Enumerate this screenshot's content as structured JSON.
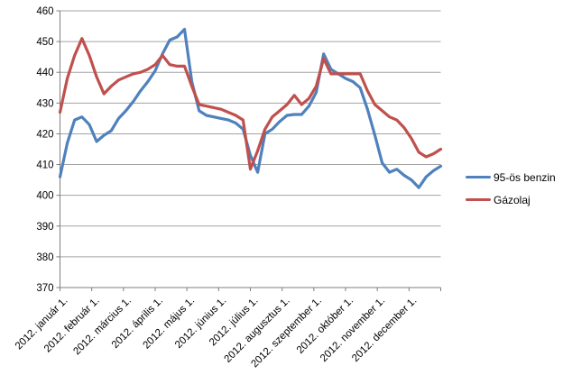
{
  "chart_data": {
    "type": "line",
    "title": "",
    "xlabel": "",
    "ylabel": "",
    "x_tick_labels": [
      "2012. január 1.",
      "2012. február 1.",
      "2012. március 1.",
      "2012. április 1.",
      "2012. május 1.",
      "2012. június 1.",
      "2012. július 1.",
      "2012. augusztus 1.",
      "2012. szeptember 1.",
      "2012. október 1.",
      "2012. november 1.",
      "2012. december 1."
    ],
    "y_axis": {
      "min": 370,
      "max": 460,
      "step": 10
    },
    "grid": true,
    "legend_position": "right",
    "series": [
      {
        "name": "95-ös benzin",
        "color": "#4F81BD",
        "values": [
          406,
          417,
          424.5,
          425.5,
          423,
          417.5,
          419.5,
          421,
          425,
          427.5,
          430.5,
          434,
          437,
          440.5,
          446,
          450.5,
          451.5,
          454,
          437,
          427.5,
          426,
          425.5,
          425,
          424.5,
          423.5,
          421.5,
          413,
          407.5,
          420,
          421.5,
          424,
          426,
          426.3,
          426.3,
          429,
          433.5,
          446,
          441,
          439.5,
          438,
          437,
          435,
          428,
          419.5,
          410.5,
          407.5,
          408.5,
          406.5,
          405,
          402.5,
          406,
          408,
          409.5
        ]
      },
      {
        "name": "Gázolaj",
        "color": "#C0504D",
        "values": [
          427,
          438,
          445.5,
          451,
          445.5,
          438.5,
          433,
          435.5,
          437.5,
          438.5,
          439.5,
          440,
          441,
          442.5,
          445.5,
          442.5,
          442,
          442,
          435.5,
          429.5,
          429,
          428.5,
          428,
          427,
          426,
          424.5,
          408.5,
          414.5,
          421.5,
          425.5,
          427.5,
          429.5,
          432.5,
          429.5,
          431.5,
          435.5,
          444.5,
          439.5,
          439.5,
          439.5,
          439.5,
          439.5,
          434,
          429.5,
          427.5,
          425.5,
          424.5,
          422,
          418.5,
          414,
          412.5,
          413.5,
          415
        ]
      }
    ],
    "colors": {
      "gridline": "#A3A3A3",
      "axis": "#7F7F7F",
      "label": "#000000",
      "background": "#FFFFFF"
    }
  }
}
